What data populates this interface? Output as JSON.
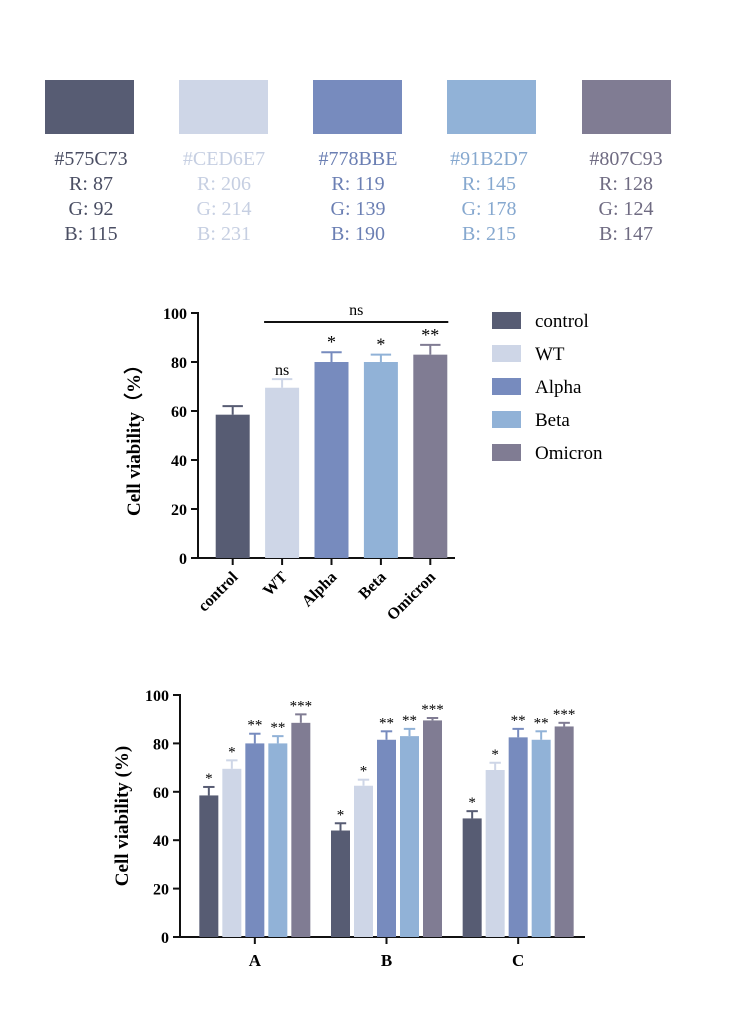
{
  "palette": [
    {
      "hex": "#575C73",
      "r": "R: 87",
      "g": "G: 92",
      "b": "B: 115",
      "color": "#575C73",
      "text_color": "#4a4e63"
    },
    {
      "hex": "#CED6E7",
      "r": "R: 206",
      "g": "G: 214",
      "b": "B: 231",
      "color": "#CED6E7",
      "text_color": "#c6cfe2"
    },
    {
      "hex": "#778BBE",
      "r": "R: 119",
      "g": "G: 139",
      "b": "B: 190",
      "color": "#778BBE",
      "text_color": "#6b7fb3"
    },
    {
      "hex": "#91B2D7",
      "r": "R: 145",
      "g": "G: 178",
      "b": "B: 215",
      "color": "#91B2D7",
      "text_color": "#86a8cf"
    },
    {
      "hex": "#807C93",
      "r": "R: 128",
      "g": "G: 124",
      "b": "B: 147",
      "color": "#807C93",
      "text_color": "#6f6b82"
    }
  ],
  "chart_data": [
    {
      "type": "bar",
      "ylabel": "Cell viability（%）",
      "ylim": [
        0,
        100
      ],
      "yticks": [
        "0",
        "20",
        "40",
        "60",
        "80",
        "100"
      ],
      "categories": [
        "control",
        "WT",
        "Alpha",
        "Beta",
        "Omicron"
      ],
      "values": [
        58.5,
        69.5,
        80,
        80,
        83
      ],
      "errors": [
        3.5,
        3.5,
        4,
        3,
        4
      ],
      "annotations": [
        "",
        "ns",
        "*",
        "*",
        "**"
      ],
      "bracket_label": "ns",
      "colors": [
        "#575C73",
        "#CED6E7",
        "#778BBE",
        "#91B2D7",
        "#807C93"
      ],
      "legend": [
        "control",
        "WT",
        "Alpha",
        "Beta",
        "Omicron"
      ],
      "legend_position": "right",
      "grid": false
    },
    {
      "type": "bar",
      "ylabel": "Cell viability (%)",
      "ylim": [
        0,
        100
      ],
      "yticks": [
        "0",
        "20",
        "40",
        "60",
        "80",
        "100"
      ],
      "categories": [
        "A",
        "B",
        "C"
      ],
      "series": [
        {
          "values": [
            58.5,
            44,
            49
          ],
          "errors": [
            3.5,
            3,
            3
          ],
          "annotations": [
            "*",
            "*",
            "*"
          ],
          "color": "#575C73"
        },
        {
          "values": [
            69.5,
            62.5,
            69
          ],
          "errors": [
            3.5,
            2.5,
            3
          ],
          "annotations": [
            "*",
            "*",
            "*"
          ],
          "color": "#CED6E7"
        },
        {
          "values": [
            80,
            81.5,
            82.5
          ],
          "errors": [
            4,
            3.5,
            3.5
          ],
          "annotations": [
            "**",
            "**",
            "**"
          ],
          "color": "#778BBE"
        },
        {
          "values": [
            80,
            83,
            81.5
          ],
          "errors": [
            3,
            3,
            3.5
          ],
          "annotations": [
            "**",
            "**",
            "**"
          ],
          "color": "#91B2D7"
        },
        {
          "values": [
            88.5,
            89.5,
            87
          ],
          "errors": [
            3.5,
            1,
            1.5
          ],
          "annotations": [
            "***",
            "***",
            "***"
          ],
          "color": "#807C93"
        }
      ],
      "grid": false
    }
  ]
}
